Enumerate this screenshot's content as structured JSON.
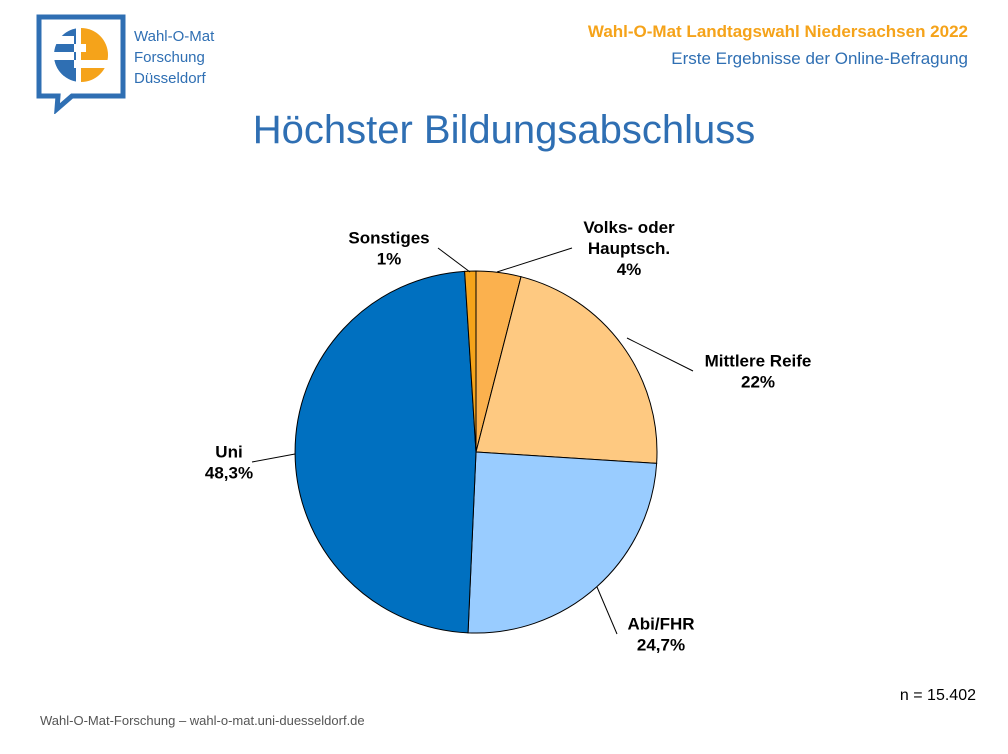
{
  "logo": {
    "lines": [
      "Wahl-O-Mat",
      "Forschung",
      "Düsseldorf"
    ],
    "colors": {
      "blue": "#2f6fb3",
      "orange": "#f5a31a"
    }
  },
  "header": {
    "title": "Wahl-O-Mat Landtagswahl Niedersachsen 2022",
    "subtitle": "Erste Ergebnisse der Online-Befragung"
  },
  "page_title": "Höchster Bildungsabschluss",
  "chart_data": {
    "type": "pie",
    "title": "Höchster Bildungsabschluss",
    "start_angle_deg": 0,
    "direction": "clockwise",
    "slices": [
      {
        "label_lines": [
          "Volks- oder",
          "Hauptsch."
        ],
        "value": 4,
        "display": "4%",
        "color": "#fbb14e"
      },
      {
        "label_lines": [
          "Mittlere Reife"
        ],
        "value": 22,
        "display": "22%",
        "color": "#fec981"
      },
      {
        "label_lines": [
          "Abi/FHR"
        ],
        "value": 24.7,
        "display": "24,7%",
        "color": "#99ccff"
      },
      {
        "label_lines": [
          "Uni"
        ],
        "value": 48.3,
        "display": "48,3%",
        "color": "#0070c0"
      },
      {
        "label_lines": [
          "Sonstiges"
        ],
        "value": 1,
        "display": "1%",
        "color": "#f5a31a"
      }
    ]
  },
  "sample_size": "n = 15.402",
  "footer": "Wahl-O-Mat-Forschung – wahl-o-mat.uni-duesseldorf.de"
}
